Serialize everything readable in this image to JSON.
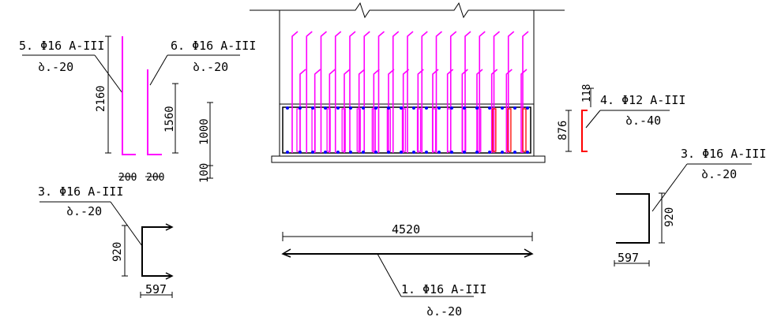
{
  "colors": {
    "line": "#000000",
    "magenta": "#ff00ff",
    "red": "#ff0000",
    "blue": "#0000ff"
  },
  "labels": {
    "bar5": {
      "title": "5. Φ16 A-III",
      "sub": "ბ.-20"
    },
    "bar6": {
      "title": "6. Φ16 A-III",
      "sub": "ბ.-20"
    },
    "bar3_left": {
      "title": "3. Φ16 A-III",
      "sub": "ბ.-20"
    },
    "bar4": {
      "title": "4. Φ12 A-III",
      "sub": "ბ.-40"
    },
    "bar3_right": {
      "title": "3. Φ16 A-III",
      "sub": "ბ.-20"
    },
    "bar1": {
      "title": "1. Φ16 A-III",
      "sub": "ბ.-20"
    }
  },
  "dims": {
    "d2160": "2160",
    "d1560": "1560",
    "d200a": "200",
    "d200b": "200",
    "d1000": "1000",
    "d100": "100",
    "d920_left": "920",
    "d597_left": "597",
    "d4520": "4520",
    "d876": "876",
    "d118": "118",
    "d920_right": "920",
    "d597_right": "597"
  },
  "section": {
    "tall_bar_count": 17,
    "short_bar_count": 16,
    "stirrup_count": 16
  }
}
